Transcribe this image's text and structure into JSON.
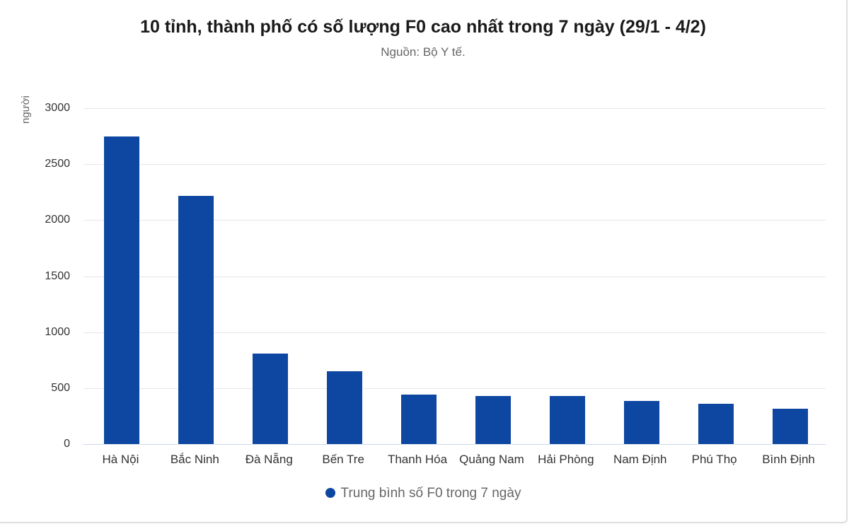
{
  "header": {
    "title": "10 tỉnh, thành phố có số lượng F0 cao nhất trong 7 ngày (29/1 - 4/2)",
    "subtitle": "Nguồn: Bộ Y tế."
  },
  "axes": {
    "ylabel": "người",
    "yticks": [
      "0",
      "500",
      "1000",
      "1500",
      "2000",
      "2500",
      "3000"
    ]
  },
  "legend": {
    "label": "Trung bình số F0 trong 7 ngày",
    "color": "#0d47a1"
  },
  "chart_data": {
    "type": "bar",
    "title": "10 tỉnh, thành phố có số lượng F0 cao nhất trong 7 ngày (29/1 - 4/2)",
    "subtitle": "Nguồn: Bộ Y tế.",
    "xlabel": "",
    "ylabel": "người",
    "ylim": [
      0,
      3000
    ],
    "yticks": [
      0,
      500,
      1000,
      1500,
      2000,
      2500,
      3000
    ],
    "grid": true,
    "legend_position": "bottom",
    "categories": [
      "Hà Nội",
      "Bắc Ninh",
      "Đà Nẵng",
      "Bến Tre",
      "Thanh Hóa",
      "Quảng Nam",
      "Hải Phòng",
      "Nam Định",
      "Phú Thọ",
      "Bình Định"
    ],
    "series": [
      {
        "name": "Trung bình số F0 trong 7 ngày",
        "color": "#0d47a1",
        "values": [
          2750,
          2219,
          810,
          649,
          440,
          431,
          431,
          387,
          360,
          314
        ]
      }
    ]
  }
}
